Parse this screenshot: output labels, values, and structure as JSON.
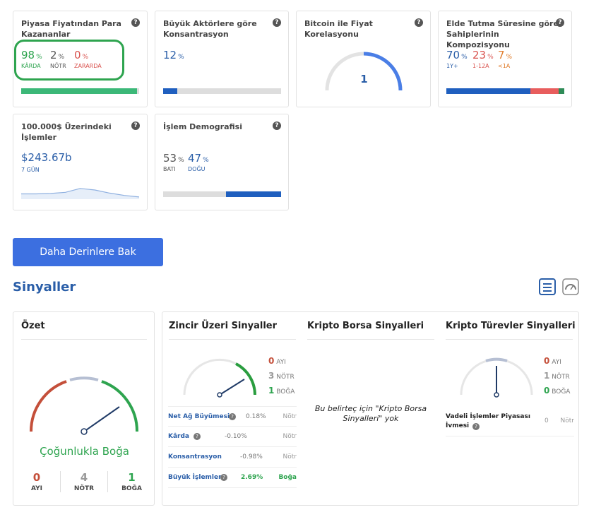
{
  "cards": {
    "c1": {
      "title": "Piyasa Fiyatından Para Kazananlar",
      "a_val": "98",
      "a_lbl": "KÂRDA",
      "b_val": "2",
      "b_lbl": "NÖTR",
      "c_val": "0",
      "c_lbl": "ZARARDA",
      "pct": "%",
      "bar_fraction": 0.98
    },
    "c2": {
      "title": "Büyük Aktörlere göre Konsantrasyon",
      "val": "12",
      "pct": "%",
      "bar_fraction": 0.12
    },
    "c3": {
      "title": "Bitcoin ile Fiyat Korelasyonu",
      "val": "1",
      "gauge_fraction": 1
    },
    "c4": {
      "title": "Elde Tutma Süresine göre Sahiplerinin Kompozisyonu",
      "a_val": "70",
      "a_lbl": "1Y+",
      "b_val": "23",
      "b_lbl": "1-12A",
      "c_val": "7",
      "c_lbl": "<1A",
      "pct": "%",
      "bar_fractions": [
        0.7,
        0.23,
        0.07
      ]
    },
    "c5": {
      "title": "100.000$ Üzerindeki İşlemler",
      "val": "$243.67b",
      "sub": "7 GÜN",
      "spark": [
        0.25,
        0.25,
        0.28,
        0.35,
        0.6,
        0.5,
        0.3,
        0.15,
        0.05
      ]
    },
    "c6": {
      "title": "İşlem Demografisi",
      "a_val": "53",
      "a_lbl": "BATI",
      "b_val": "47",
      "b_lbl": "DOĞU",
      "pct": "%",
      "bar_fractions": [
        0.53,
        0.47
      ]
    }
  },
  "help_glyph": "?",
  "deeper_button": "Daha Derinlere Bak",
  "signals_heading": "Sinyaller",
  "summary": {
    "title": "Özet",
    "verdict": "Çoğunlukla Boğa",
    "bear_val": "0",
    "bear_lbl": "AYI",
    "neutral_val": "4",
    "neutral_lbl": "NÖTR",
    "bull_val": "1",
    "bull_lbl": "BOĞA"
  },
  "onchain": {
    "title": "Zincir Üzeri Sinyaller",
    "bear_val": "0",
    "bear_lbl": "AYI",
    "neutral_val": "3",
    "neutral_lbl": "NÖTR",
    "bull_val": "1",
    "bull_lbl": "BOĞA",
    "rows": [
      {
        "name": "Net Ağ Büyümesi",
        "value": "0.18%",
        "signal": "Nötr"
      },
      {
        "name": "Kârda",
        "value": "-0.10%",
        "signal": "Nötr"
      },
      {
        "name": "Konsantrasyon",
        "value": "-0.98%",
        "signal": "Nötr"
      },
      {
        "name": "Büyük İşlemler",
        "value": "2.69%",
        "signal": "Boğa"
      }
    ]
  },
  "exchange": {
    "title": "Kripto Borsa Sinyalleri",
    "empty": "Bu belirteç için \"Kripto Borsa Sinyalleri\" yok"
  },
  "derivatives": {
    "title": "Kripto Türevler Sinyalleri",
    "bear_val": "0",
    "bear_lbl": "AYI",
    "neutral_val": "1",
    "neutral_lbl": "NÖTR",
    "bull_val": "0",
    "bull_lbl": "BOĞA",
    "row_name": "Vadeli İşlemler Piyasası İvmesi",
    "row_value": "0",
    "row_signal": "Nötr"
  },
  "colors": {
    "green": "#2ea44f",
    "red": "#d9534f",
    "blue": "#2a5ea8",
    "orange": "#e07b2a",
    "button": "#3c6fe0"
  }
}
